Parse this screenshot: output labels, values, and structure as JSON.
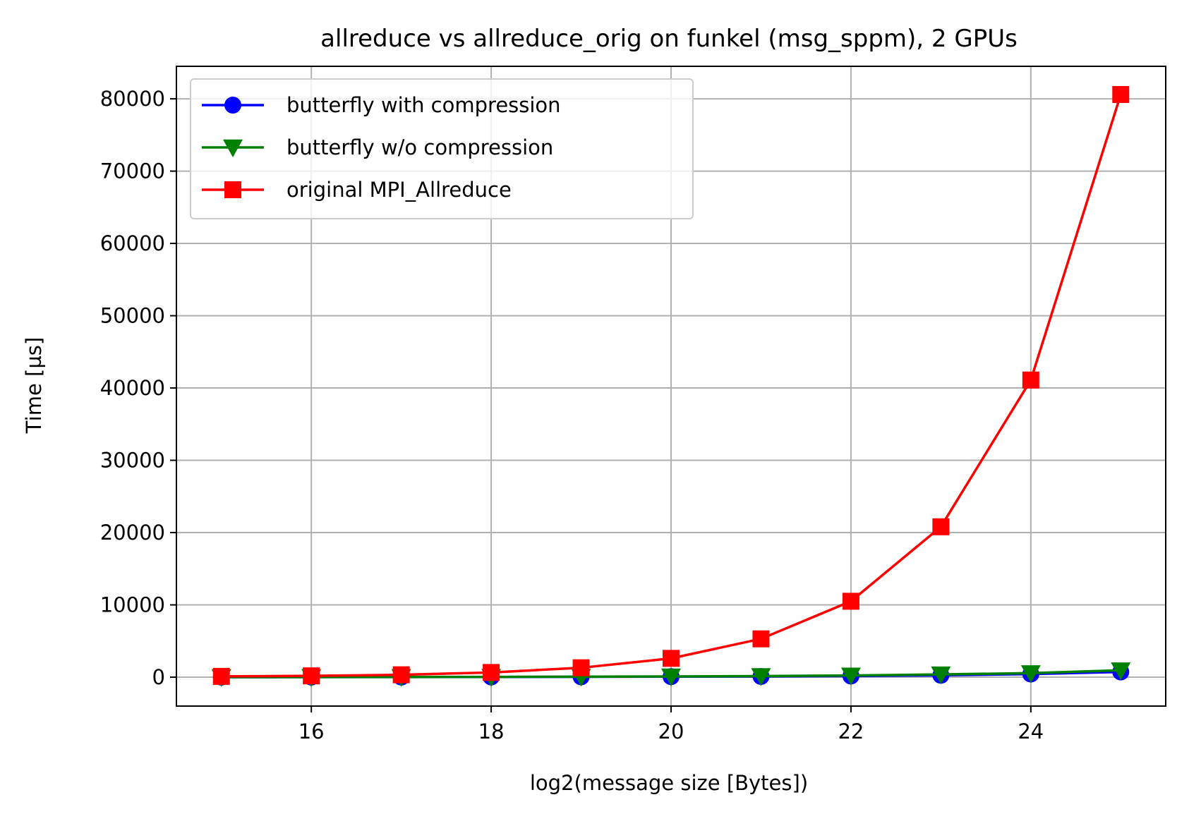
{
  "chart_data": {
    "type": "line",
    "title": "allreduce vs allreduce_orig on funkel (msg_sppm), 2 GPUs",
    "xlabel": "log2(message size [Bytes])",
    "ylabel": "Time [µs]",
    "xlim": [
      14.5,
      25.5
    ],
    "ylim": [
      -4000,
      84500
    ],
    "xticks": [
      16,
      18,
      20,
      22,
      24
    ],
    "yticks": [
      0,
      10000,
      20000,
      30000,
      40000,
      50000,
      60000,
      70000,
      80000
    ],
    "grid": true,
    "legend_position": "upper-left",
    "x": [
      15,
      16,
      17,
      18,
      19,
      20,
      21,
      22,
      23,
      24,
      25
    ],
    "series": [
      {
        "name": "butterfly with compression",
        "color": "#0000ff",
        "marker": "circle",
        "values": [
          5,
          8,
          15,
          25,
          45,
          70,
          100,
          160,
          260,
          430,
          720
        ]
      },
      {
        "name": "butterfly w/o compression",
        "color": "#008000",
        "marker": "triangle-down",
        "values": [
          10,
          15,
          25,
          40,
          60,
          100,
          150,
          230,
          380,
          560,
          950
        ]
      },
      {
        "name": "original MPI_Allreduce",
        "color": "#ff0000",
        "marker": "square",
        "values": [
          110,
          180,
          330,
          650,
          1300,
          2600,
          5300,
          10500,
          20800,
          41100,
          80600
        ]
      }
    ]
  }
}
